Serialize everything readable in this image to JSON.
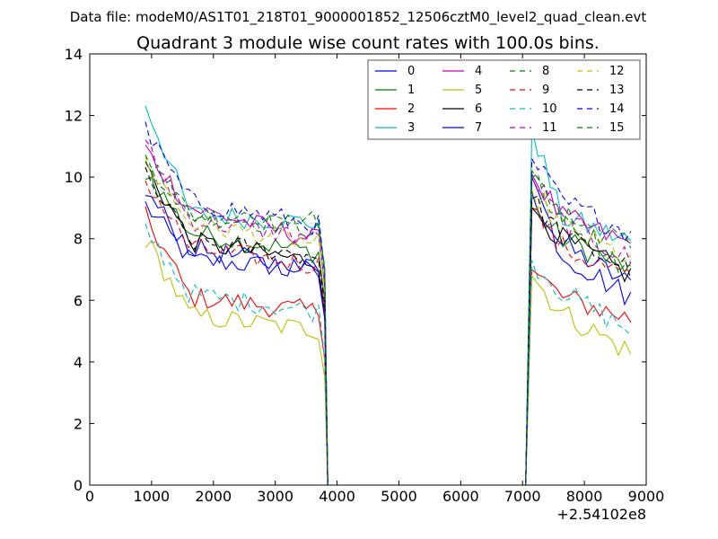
{
  "chart_data": {
    "type": "line",
    "suptitle": "Data file: modeM0/AS1T01_218T01_9000001852_12506cztM0_level2_quad_clean.evt",
    "title": "Quadrant 3 module wise count rates with 100.0s bins.",
    "xlabel": "",
    "ylabel": "",
    "x_offset_label": "+2.54102e8",
    "xlim": [
      0,
      9000
    ],
    "ylim": [
      0,
      14
    ],
    "xticks": [
      0,
      1000,
      2000,
      3000,
      4000,
      5000,
      6000,
      7000,
      8000,
      9000
    ],
    "yticks": [
      0,
      2,
      4,
      6,
      8,
      10,
      12,
      14
    ],
    "grid": false,
    "legend_position": "top-right",
    "series": [
      {
        "name": "0",
        "color": "#0000ff",
        "dash": "solid",
        "start": 9.1,
        "mid1": 7.3,
        "seg1_end": 7.0,
        "start2": 9.5,
        "mid2": 7.8,
        "end": 6.5
      },
      {
        "name": "1",
        "color": "#008000",
        "dash": "solid",
        "start": 10.2,
        "mid1": 8.2,
        "seg1_end": 7.5,
        "start2": 9.0,
        "mid2": 8.0,
        "end": 7.0
      },
      {
        "name": "2",
        "color": "#ff0000",
        "dash": "solid",
        "start": 8.7,
        "mid1": 6.1,
        "seg1_end": 5.6,
        "start2": 7.0,
        "mid2": 6.1,
        "end": 5.4
      },
      {
        "name": "3",
        "color": "#00bfbf",
        "dash": "solid",
        "start": 12.4,
        "mid1": 8.8,
        "seg1_end": 8.5,
        "start2": 11.6,
        "mid2": 8.7,
        "end": 7.9
      },
      {
        "name": "4",
        "color": "#bf00bf",
        "dash": "solid",
        "start": 10.9,
        "mid1": 9.0,
        "seg1_end": 7.9,
        "start2": 10.1,
        "mid2": 8.7,
        "end": 7.8
      },
      {
        "name": "5",
        "color": "#bfbf00",
        "dash": "solid",
        "start": 8.0,
        "mid1": 5.5,
        "seg1_end": 5.0,
        "start2": 6.8,
        "mid2": 5.6,
        "end": 4.3
      },
      {
        "name": "6",
        "color": "#000000",
        "dash": "solid",
        "start": 10.4,
        "mid1": 7.9,
        "seg1_end": 7.2,
        "start2": 9.0,
        "mid2": 8.0,
        "end": 6.8
      },
      {
        "name": "7",
        "color": "#0000ff",
        "dash": "solid",
        "start": 9.5,
        "mid1": 7.7,
        "seg1_end": 6.9,
        "start2": 10.0,
        "mid2": 7.5,
        "end": 6.1
      },
      {
        "name": "8",
        "color": "#008000",
        "dash": "dashed",
        "start": 10.6,
        "mid1": 8.8,
        "seg1_end": 8.3,
        "start2": 10.0,
        "mid2": 8.7,
        "end": 7.8
      },
      {
        "name": "9",
        "color": "#ff0000",
        "dash": "dashed",
        "start": 9.9,
        "mid1": 7.7,
        "seg1_end": 7.1,
        "start2": 9.0,
        "mid2": 7.7,
        "end": 6.7
      },
      {
        "name": "10",
        "color": "#00bfbf",
        "dash": "dashed",
        "start": 8.3,
        "mid1": 6.2,
        "seg1_end": 5.6,
        "start2": 7.3,
        "mid2": 6.3,
        "end": 5.0
      },
      {
        "name": "11",
        "color": "#bf00bf",
        "dash": "dashed",
        "start": 11.0,
        "mid1": 8.6,
        "seg1_end": 8.0,
        "start2": 10.0,
        "mid2": 8.6,
        "end": 7.3
      },
      {
        "name": "12",
        "color": "#bfbf00",
        "dash": "dashed",
        "start": 10.5,
        "mid1": 8.5,
        "seg1_end": 7.8,
        "start2": 9.6,
        "mid2": 8.4,
        "end": 7.3
      },
      {
        "name": "13",
        "color": "#000000",
        "dash": "dashed",
        "start": 10.0,
        "mid1": 7.9,
        "seg1_end": 7.4,
        "start2": 9.3,
        "mid2": 8.1,
        "end": 7.0
      },
      {
        "name": "14",
        "color": "#0000ff",
        "dash": "dashed",
        "start": 11.5,
        "mid1": 9.2,
        "seg1_end": 8.4,
        "start2": 10.6,
        "mid2": 9.2,
        "end": 8.2
      },
      {
        "name": "15",
        "color": "#008000",
        "dash": "dashed",
        "start": 10.7,
        "mid1": 8.8,
        "seg1_end": 8.6,
        "start2": 10.2,
        "mid2": 8.9,
        "end": 6.9
      }
    ],
    "x_ranges": {
      "segment1": [
        900,
        3800
      ],
      "gap": [
        3850,
        7050
      ],
      "segment2": [
        7150,
        8700
      ],
      "step": 100
    }
  }
}
